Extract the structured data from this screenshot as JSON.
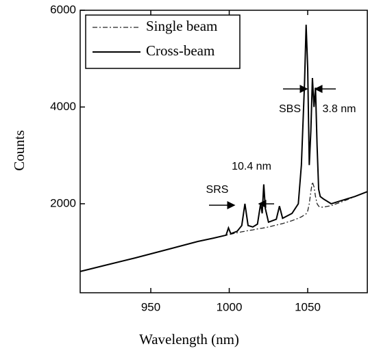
{
  "chart_data": {
    "type": "line",
    "x_label": "Wavelength (nm)",
    "y_label": "Counts",
    "x": [
      905,
      920,
      940,
      960,
      980,
      990,
      998,
      999.5,
      1001,
      1005,
      1008,
      1010,
      1012,
      1015,
      1018,
      1020,
      1021,
      1022,
      1023,
      1025,
      1030,
      1032,
      1034,
      1040,
      1044,
      1046,
      1048,
      1049,
      1050,
      1051,
      1052,
      1053,
      1054,
      1055,
      1056,
      1057,
      1058,
      1060,
      1065,
      1070,
      1075,
      1080,
      1088
    ],
    "series": [
      {
        "name": "Single beam",
        "color": "#222222",
        "dash": "dashdot",
        "values": [
          600,
          720,
          880,
          1050,
          1220,
          1290,
          1350,
          1360,
          1370,
          1400,
          1420,
          1430,
          1445,
          1460,
          1480,
          1490,
          1495,
          1500,
          1505,
          1520,
          1560,
          1575,
          1590,
          1650,
          1700,
          1730,
          1770,
          1790,
          1850,
          2000,
          2250,
          2450,
          2350,
          2150,
          2000,
          1950,
          1930,
          1930,
          1960,
          2020,
          2080,
          2150,
          2250
        ]
      },
      {
        "name": "Cross-beam",
        "color": "#000000",
        "dash": "solid",
        "values": [
          600,
          720,
          880,
          1050,
          1220,
          1290,
          1350,
          1500,
          1380,
          1430,
          1550,
          2000,
          1550,
          1520,
          1580,
          2000,
          1800,
          2400,
          1900,
          1620,
          1680,
          1950,
          1700,
          1800,
          2000,
          2800,
          4500,
          5700,
          4800,
          2800,
          3500,
          4600,
          4000,
          4400,
          3200,
          2300,
          2150,
          2100,
          2000,
          2050,
          2100,
          2150,
          2250
        ]
      }
    ],
    "annotations": [
      "SRS",
      "10.4 nm",
      "SBS",
      "3.8 nm"
    ],
    "xlim": [
      905,
      1088
    ],
    "ylim": [
      160,
      6000
    ],
    "xticks": [
      950,
      1000,
      1050
    ],
    "yticks": [
      2000,
      4000,
      6000
    ],
    "legend": "upper left"
  }
}
